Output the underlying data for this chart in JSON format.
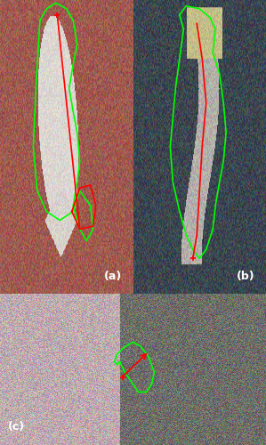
{
  "fig_width": 2.99,
  "fig_height": 5.0,
  "dpi": 100,
  "label_a": "(a)",
  "label_b": "(b)",
  "label_c": "(c)",
  "label_fontsize": 9,
  "label_color": "white",
  "border_color": "black",
  "border_lw": 0.5,
  "green": "#00FF00",
  "red": "#FF0000",
  "line_lw": 1.2
}
